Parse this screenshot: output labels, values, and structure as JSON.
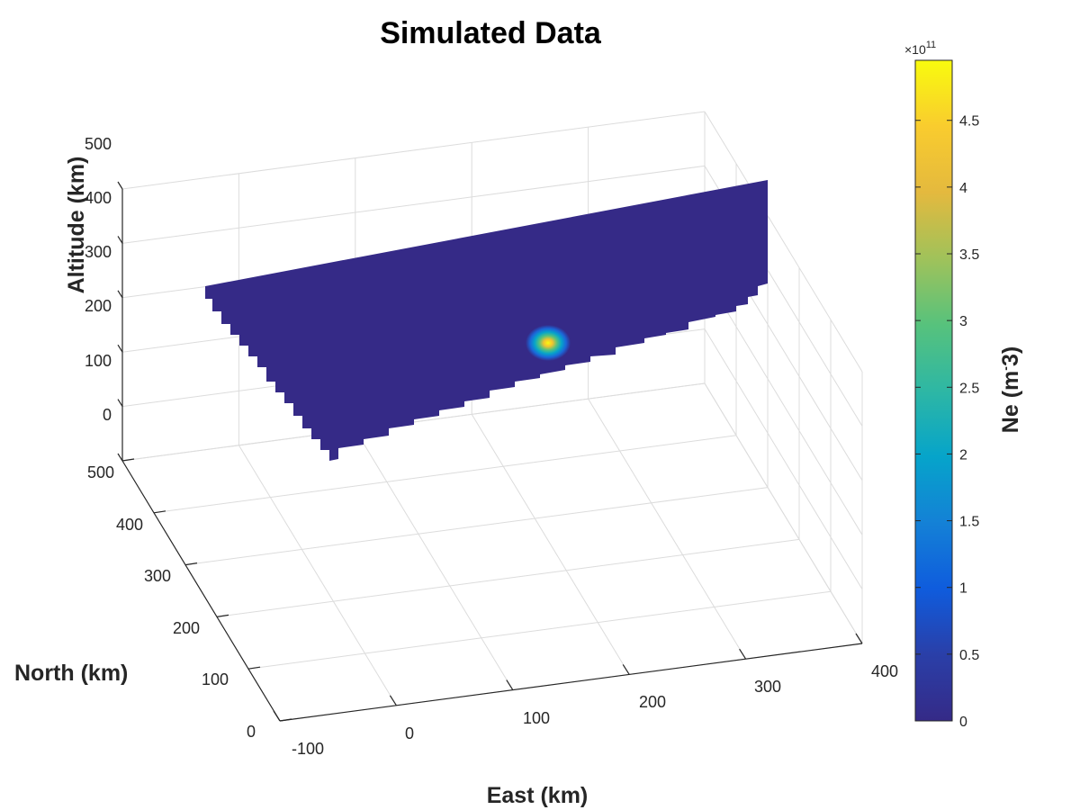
{
  "chart_data": {
    "type": "heatmap",
    "title": "Simulated Data",
    "xlabel": "East (km)",
    "ylabel": "North (km)",
    "zlabel": "Altitude (km)",
    "x_ticks": [
      "-100",
      "0",
      "100",
      "200",
      "300",
      "400"
    ],
    "y_ticks": [
      "0",
      "100",
      "200",
      "300",
      "400",
      "500"
    ],
    "z_ticks": [
      "0",
      "100",
      "200",
      "300",
      "400",
      "500"
    ],
    "xlim": [
      -100,
      400
    ],
    "ylim": [
      0,
      500
    ],
    "zlim": [
      0,
      500
    ],
    "grid": true,
    "view": "3d",
    "surface": {
      "description_values": "vertical slice with Ne values mostly near 0 and a single Gaussian peak",
      "background_value": 0.01,
      "peak_value": 4.9,
      "peak_location": {
        "x": 165,
        "y": 250,
        "z": 290
      }
    },
    "colorbar": {
      "label": "Ne (m^-3)",
      "label_main": "Ne (m",
      "label_exp": "-",
      "label_close": "3)",
      "exponent_prefix": "×10",
      "exponent": "11",
      "min": 0,
      "max": 4.95,
      "ticks": [
        "0",
        "0.5",
        "1",
        "1.5",
        "2",
        "2.5",
        "3",
        "3.5",
        "4",
        "4.5"
      ],
      "colormap": "parula"
    }
  },
  "colors": {
    "background_slice": "#352a87",
    "grid": "#dcdcdc",
    "axis": "#262626"
  }
}
